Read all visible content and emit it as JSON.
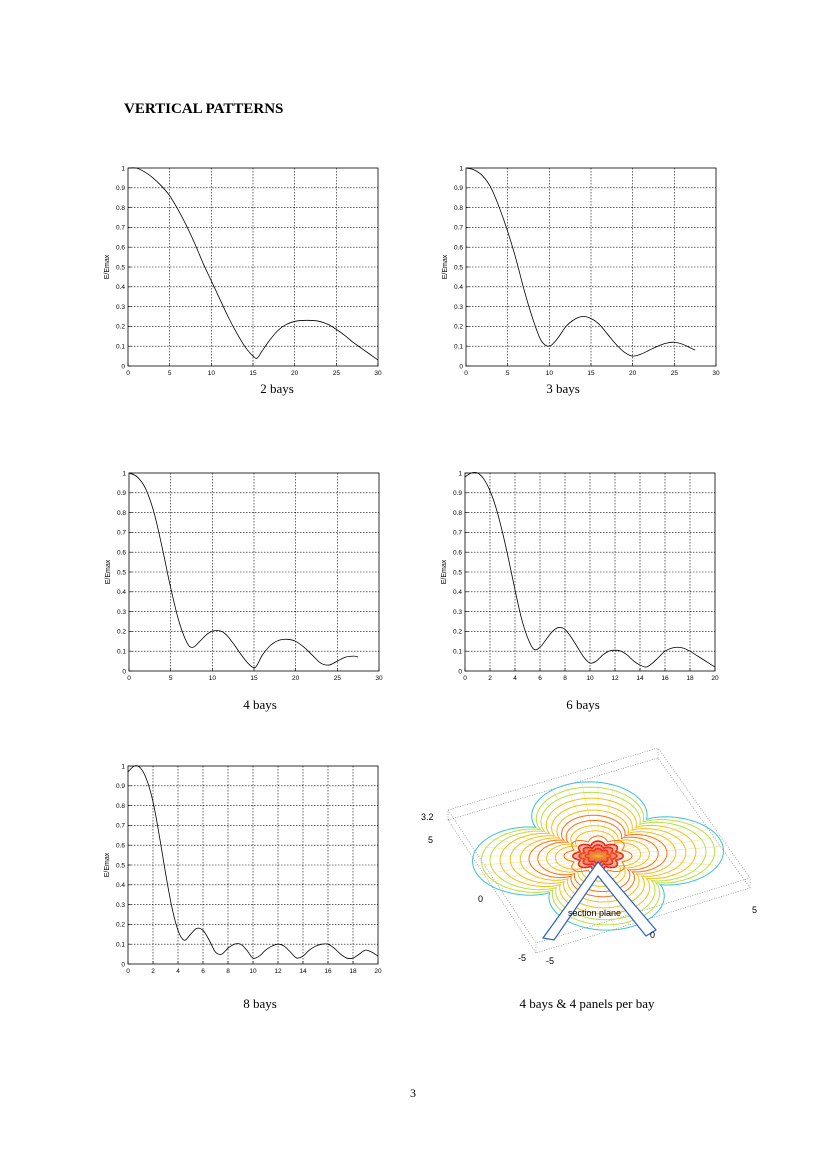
{
  "page": {
    "title": "VERTICAL PATTERNS",
    "page_number": "3"
  },
  "chart_data": [
    {
      "type": "line",
      "caption": "2 bays",
      "ylabel": "E/Emax",
      "xlim": [
        0,
        30
      ],
      "ylim": [
        0,
        1
      ],
      "xticks": [
        0,
        5,
        10,
        15,
        20,
        25,
        30
      ],
      "yticks": [
        0,
        0.1,
        0.2,
        0.3,
        0.4,
        0.5,
        0.6,
        0.7,
        0.8,
        0.9,
        1
      ],
      "grid": true,
      "x": [
        0,
        1,
        2,
        3,
        4,
        5,
        6,
        7,
        8,
        9,
        10,
        11,
        12,
        13,
        14,
        15,
        15.5,
        16,
        17,
        18,
        19,
        20,
        21,
        22,
        23,
        24,
        25,
        26,
        27,
        28,
        29,
        30
      ],
      "y": [
        1,
        1,
        0.98,
        0.95,
        0.91,
        0.86,
        0.79,
        0.71,
        0.62,
        0.52,
        0.43,
        0.34,
        0.25,
        0.17,
        0.1,
        0.05,
        0.04,
        0.07,
        0.13,
        0.18,
        0.21,
        0.225,
        0.23,
        0.23,
        0.225,
        0.21,
        0.185,
        0.155,
        0.12,
        0.09,
        0.06,
        0.03
      ]
    },
    {
      "type": "line",
      "caption": "3 bays",
      "ylabel": "E/Emax",
      "xlim": [
        0,
        30
      ],
      "ylim": [
        0,
        1
      ],
      "xticks": [
        0,
        5,
        10,
        15,
        20,
        25,
        30
      ],
      "yticks": [
        0,
        0.1,
        0.2,
        0.3,
        0.4,
        0.5,
        0.6,
        0.7,
        0.8,
        0.9,
        1
      ],
      "grid": true,
      "x": [
        0,
        1,
        2,
        3,
        4,
        5,
        6,
        7,
        8,
        9,
        10,
        11,
        12,
        13,
        14,
        15,
        16,
        17,
        18,
        19,
        20,
        21,
        22,
        23,
        24,
        25,
        26,
        27,
        27.5
      ],
      "y": [
        1,
        0.99,
        0.96,
        0.9,
        0.8,
        0.68,
        0.54,
        0.38,
        0.24,
        0.13,
        0.1,
        0.14,
        0.2,
        0.235,
        0.25,
        0.24,
        0.21,
        0.16,
        0.11,
        0.07,
        0.05,
        0.06,
        0.08,
        0.1,
        0.115,
        0.12,
        0.11,
        0.09,
        0.08
      ]
    },
    {
      "type": "line",
      "caption": "4 bays",
      "ylabel": "E/Emax",
      "xlim": [
        0,
        30
      ],
      "ylim": [
        0,
        1
      ],
      "xticks": [
        0,
        5,
        10,
        15,
        20,
        25,
        30
      ],
      "yticks": [
        0,
        0.1,
        0.2,
        0.3,
        0.4,
        0.5,
        0.6,
        0.7,
        0.8,
        0.9,
        1
      ],
      "grid": true,
      "x": [
        0,
        1,
        2,
        3,
        4,
        5,
        6,
        7,
        7.7,
        8.5,
        9.5,
        10.5,
        11.5,
        12.5,
        13.5,
        14.5,
        15.2,
        16,
        17,
        18,
        19,
        20,
        21,
        22,
        23,
        24,
        25,
        26,
        27,
        27.5
      ],
      "y": [
        1,
        0.98,
        0.92,
        0.8,
        0.62,
        0.42,
        0.25,
        0.14,
        0.12,
        0.15,
        0.19,
        0.205,
        0.19,
        0.14,
        0.08,
        0.03,
        0.02,
        0.08,
        0.13,
        0.155,
        0.16,
        0.15,
        0.12,
        0.08,
        0.04,
        0.03,
        0.05,
        0.07,
        0.075,
        0.07
      ]
    },
    {
      "type": "line",
      "caption": "6 bays",
      "ylabel": "E/Emax",
      "xlim": [
        0,
        20
      ],
      "ylim": [
        0,
        1
      ],
      "xticks": [
        0,
        2,
        4,
        6,
        8,
        10,
        12,
        14,
        16,
        18,
        20
      ],
      "yticks": [
        0,
        0.1,
        0.2,
        0.3,
        0.4,
        0.5,
        0.6,
        0.7,
        0.8,
        0.9,
        1
      ],
      "grid": true,
      "x": [
        0,
        0.5,
        1,
        1.5,
        2,
        2.5,
        3,
        3.5,
        4,
        4.5,
        5,
        5.5,
        6,
        6.5,
        7,
        7.5,
        8,
        8.5,
        9,
        9.5,
        10,
        10.5,
        11,
        11.5,
        12,
        12.5,
        13,
        13.5,
        14,
        14.5,
        15,
        15.5,
        16,
        16.5,
        17,
        17.5,
        18,
        18.5,
        19,
        19.5,
        20
      ],
      "y": [
        0.98,
        1,
        1,
        0.97,
        0.91,
        0.82,
        0.7,
        0.56,
        0.41,
        0.27,
        0.17,
        0.11,
        0.12,
        0.16,
        0.2,
        0.22,
        0.21,
        0.17,
        0.12,
        0.07,
        0.04,
        0.05,
        0.08,
        0.1,
        0.105,
        0.1,
        0.08,
        0.05,
        0.03,
        0.02,
        0.04,
        0.07,
        0.1,
        0.115,
        0.12,
        0.115,
        0.1,
        0.08,
        0.06,
        0.04,
        0.02
      ]
    },
    {
      "type": "line",
      "caption": "8 bays",
      "ylabel": "E/Emax",
      "xlim": [
        0,
        20
      ],
      "ylim": [
        0,
        1
      ],
      "xticks": [
        0,
        2,
        4,
        6,
        8,
        10,
        12,
        14,
        16,
        18,
        20
      ],
      "yticks": [
        0,
        0.1,
        0.2,
        0.3,
        0.4,
        0.5,
        0.6,
        0.7,
        0.8,
        0.9,
        1
      ],
      "grid": true,
      "x": [
        0,
        0.5,
        1,
        1.5,
        2,
        2.5,
        3,
        3.5,
        4,
        4.5,
        5,
        5.5,
        6,
        6.5,
        7,
        7.5,
        8,
        8.5,
        9,
        9.5,
        10,
        10.5,
        11,
        11.5,
        12,
        12.5,
        13,
        13.5,
        14,
        14.5,
        15,
        15.5,
        16,
        16.5,
        17,
        17.5,
        18,
        18.5,
        19,
        19.5,
        20
      ],
      "y": [
        0.97,
        1,
        0.99,
        0.93,
        0.82,
        0.65,
        0.46,
        0.29,
        0.17,
        0.12,
        0.15,
        0.18,
        0.17,
        0.12,
        0.06,
        0.05,
        0.08,
        0.1,
        0.1,
        0.07,
        0.03,
        0.04,
        0.07,
        0.09,
        0.1,
        0.09,
        0.06,
        0.03,
        0.04,
        0.07,
        0.09,
        0.1,
        0.1,
        0.08,
        0.05,
        0.03,
        0.03,
        0.05,
        0.07,
        0.06,
        0.04
      ]
    }
  ],
  "surface_plot": {
    "caption": "4 bays & 4 panels per bay",
    "annotation": "section plane",
    "z_tick_label": "3.2",
    "left_axis_ticks": [
      "5",
      "0",
      "-5"
    ],
    "front_axis_ticks": [
      "-5",
      "0",
      "5"
    ],
    "colors": {
      "outer": "#3cc4d0",
      "mid_outer": "#b8e04a",
      "middle": "#f0c020",
      "inner": "#f07020",
      "center": "#e81818"
    }
  }
}
